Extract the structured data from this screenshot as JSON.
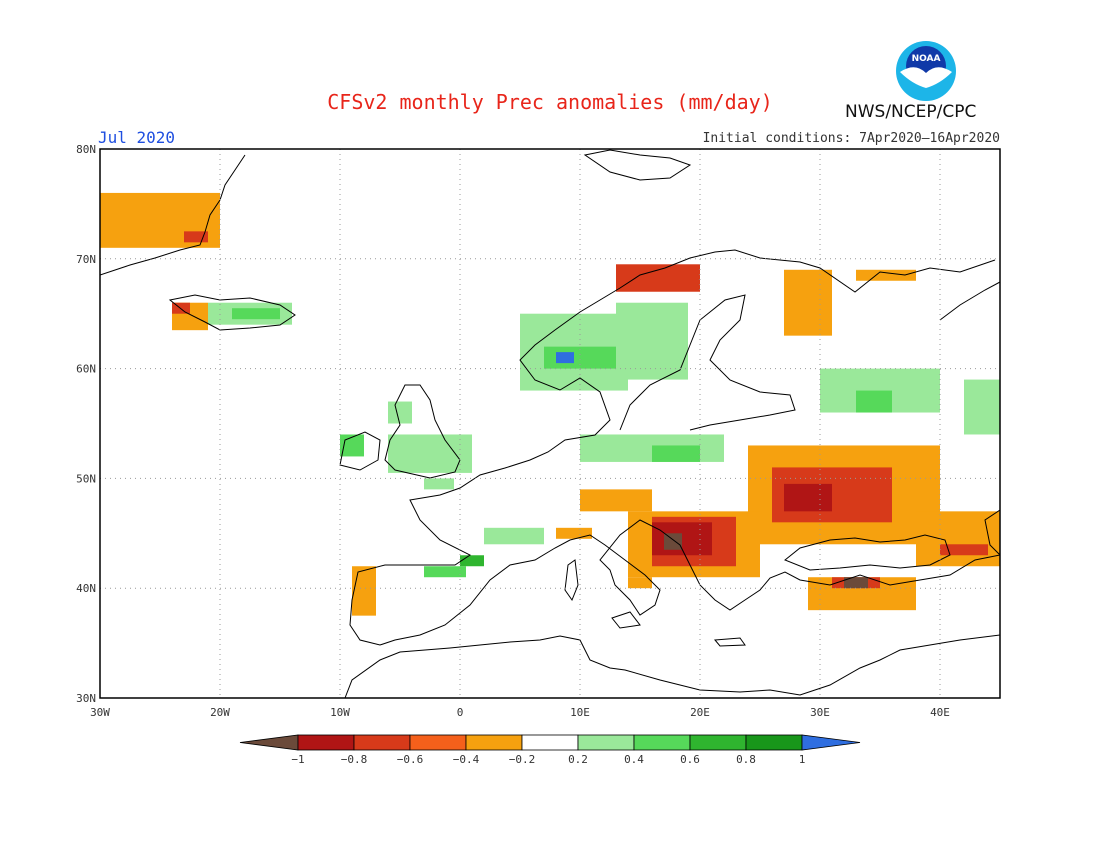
{
  "title": "CFSv2 monthly Prec anomalies (mm/day)",
  "month_label": "Jul 2020",
  "initial_conditions": "Initial conditions: 7Apr2020–16Apr2020",
  "agency": "NWS/NCEP/CPC",
  "logo": {
    "text": "NOAA",
    "colors": {
      "outer": "#1db5e8",
      "inner": "#1039a8",
      "bird": "#ffffff"
    }
  },
  "map": {
    "lon_range": [
      -30,
      45
    ],
    "lat_range": [
      30,
      80
    ],
    "lon_ticks": [
      {
        "value": -30,
        "label": "30W"
      },
      {
        "value": -20,
        "label": "20W"
      },
      {
        "value": -10,
        "label": "10W"
      },
      {
        "value": 0,
        "label": "0"
      },
      {
        "value": 10,
        "label": "10E"
      },
      {
        "value": 20,
        "label": "20E"
      },
      {
        "value": 30,
        "label": "30E"
      },
      {
        "value": 40,
        "label": "40E"
      }
    ],
    "lat_ticks": [
      {
        "value": 30,
        "label": "30N"
      },
      {
        "value": 40,
        "label": "40N"
      },
      {
        "value": 50,
        "label": "50N"
      },
      {
        "value": 60,
        "label": "60N"
      },
      {
        "value": 70,
        "label": "70N"
      },
      {
        "value": 80,
        "label": "80N"
      }
    ],
    "gridlines": "dotted"
  },
  "colorbar": {
    "labels": [
      "−1",
      "−0.8",
      "−0.6",
      "−0.4",
      "−0.2",
      "0.2",
      "0.4",
      "0.6",
      "0.8",
      "1"
    ],
    "colors": [
      "#6b4a3a",
      "#b01515",
      "#d73a1a",
      "#f5601b",
      "#f6a10f",
      "#ffffff",
      "#9ae89a",
      "#56d95a",
      "#2fb52f",
      "#18961a",
      "#2f6ee0"
    ]
  },
  "anomaly_regions": [
    {
      "name": "greenland-east",
      "color": "#f6a10f",
      "lon": [
        -30,
        -20
      ],
      "lat": [
        71,
        76
      ]
    },
    {
      "name": "greenland-east-core",
      "color": "#d73a1a",
      "lon": [
        -23,
        -21
      ],
      "lat": [
        71.5,
        72.5
      ]
    },
    {
      "name": "iceland-west",
      "color": "#f6a10f",
      "lon": [
        -24,
        -21
      ],
      "lat": [
        63.5,
        66
      ]
    },
    {
      "name": "iceland-west-core",
      "color": "#d73a1a",
      "lon": [
        -24,
        -22.5
      ],
      "lat": [
        65,
        66
      ]
    },
    {
      "name": "iceland-east",
      "color": "#9ae89a",
      "lon": [
        -21,
        -14
      ],
      "lat": [
        64,
        66
      ]
    },
    {
      "name": "iceland-east-core",
      "color": "#56d95a",
      "lon": [
        -19,
        -15
      ],
      "lat": [
        64.5,
        65.5
      ]
    },
    {
      "name": "ireland",
      "color": "#56d95a",
      "lon": [
        -10,
        -8
      ],
      "lat": [
        52,
        54
      ]
    },
    {
      "name": "uk",
      "color": "#9ae89a",
      "lon": [
        -6,
        1
      ],
      "lat": [
        50.5,
        54
      ]
    },
    {
      "name": "scotland",
      "color": "#9ae89a",
      "lon": [
        -6,
        -4
      ],
      "lat": [
        55,
        57
      ]
    },
    {
      "name": "france-west",
      "color": "#9ae89a",
      "lon": [
        -3,
        -0.5
      ],
      "lat": [
        49,
        50
      ]
    },
    {
      "name": "france-south",
      "color": "#9ae89a",
      "lon": [
        2,
        7
      ],
      "lat": [
        44,
        45.5
      ]
    },
    {
      "name": "spain-east",
      "color": "#56d95a",
      "lon": [
        -3,
        0.5
      ],
      "lat": [
        41,
        42
      ]
    },
    {
      "name": "spain-east-core",
      "color": "#2fb52f",
      "lon": [
        0,
        2
      ],
      "lat": [
        42,
        43
      ]
    },
    {
      "name": "portugal",
      "color": "#f6a10f",
      "lon": [
        -9,
        -7
      ],
      "lat": [
        37.5,
        42
      ]
    },
    {
      "name": "norway",
      "color": "#9ae89a",
      "lon": [
        5,
        14
      ],
      "lat": [
        58,
        65
      ]
    },
    {
      "name": "norway-core",
      "color": "#56d95a",
      "lon": [
        7,
        13
      ],
      "lat": [
        60,
        62
      ]
    },
    {
      "name": "norway-max",
      "color": "#2f6ee0",
      "lon": [
        8,
        9.5
      ],
      "lat": [
        60.5,
        61.5
      ]
    },
    {
      "name": "norway-coast",
      "color": "#d73a1a",
      "lon": [
        13,
        20
      ],
      "lat": [
        67,
        69.5
      ]
    },
    {
      "name": "sweden",
      "color": "#9ae89a",
      "lon": [
        13,
        19
      ],
      "lat": [
        59,
        66
      ]
    },
    {
      "name": "finland-north",
      "color": "#f6a10f",
      "lon": [
        27,
        31
      ],
      "lat": [
        63,
        69
      ]
    },
    {
      "name": "kola",
      "color": "#f6a10f",
      "lon": [
        33,
        38
      ],
      "lat": [
        68,
        69
      ]
    },
    {
      "name": "russia-nw",
      "color": "#9ae89a",
      "lon": [
        30,
        40
      ],
      "lat": [
        56,
        60
      ]
    },
    {
      "name": "russia-nw-core",
      "color": "#56d95a",
      "lon": [
        33,
        36
      ],
      "lat": [
        56,
        58
      ]
    },
    {
      "name": "russia-east",
      "color": "#9ae89a",
      "lon": [
        42,
        45
      ],
      "lat": [
        54,
        59
      ]
    },
    {
      "name": "germany-poland",
      "color": "#9ae89a",
      "lon": [
        10,
        22
      ],
      "lat": [
        51.5,
        54
      ]
    },
    {
      "name": "poland-core",
      "color": "#56d95a",
      "lon": [
        16,
        20
      ],
      "lat": [
        51.5,
        53
      ]
    },
    {
      "name": "central-europe",
      "color": "#f6a10f",
      "lon": [
        10,
        16
      ],
      "lat": [
        47,
        49
      ]
    },
    {
      "name": "ukraine",
      "color": "#f6a10f",
      "lon": [
        24,
        40
      ],
      "lat": [
        44,
        53
      ]
    },
    {
      "name": "ukraine-core",
      "color": "#d73a1a",
      "lon": [
        26,
        36
      ],
      "lat": [
        46,
        51
      ]
    },
    {
      "name": "ukraine-max",
      "color": "#b01515",
      "lon": [
        27,
        31
      ],
      "lat": [
        47,
        49.5
      ]
    },
    {
      "name": "caucasus",
      "color": "#f6a10f",
      "lon": [
        38,
        45
      ],
      "lat": [
        42,
        47
      ]
    },
    {
      "name": "caucasus-core",
      "color": "#d73a1a",
      "lon": [
        40,
        44
      ],
      "lat": [
        43,
        44
      ]
    },
    {
      "name": "balkans",
      "color": "#f6a10f",
      "lon": [
        14,
        25
      ],
      "lat": [
        41,
        47
      ]
    },
    {
      "name": "balkans-core",
      "color": "#d73a1a",
      "lon": [
        16,
        23
      ],
      "lat": [
        42,
        46.5
      ]
    },
    {
      "name": "balkans-max",
      "color": "#b01515",
      "lon": [
        16,
        21
      ],
      "lat": [
        43,
        46
      ]
    },
    {
      "name": "croatia-min",
      "color": "#6b4a3a",
      "lon": [
        17,
        18.5
      ],
      "lat": [
        43.5,
        45
      ]
    },
    {
      "name": "turkey",
      "color": "#f6a10f",
      "lon": [
        29,
        38
      ],
      "lat": [
        38,
        41
      ]
    },
    {
      "name": "turkey-core",
      "color": "#d73a1a",
      "lon": [
        31,
        35
      ],
      "lat": [
        40,
        41
      ]
    },
    {
      "name": "turkey-min",
      "color": "#6b4a3a",
      "lon": [
        32,
        34
      ],
      "lat": [
        40,
        41
      ]
    },
    {
      "name": "italy-north",
      "color": "#f6a10f",
      "lon": [
        8,
        11
      ],
      "lat": [
        44.5,
        45.5
      ]
    },
    {
      "name": "italy-south",
      "color": "#f6a10f",
      "lon": [
        14,
        16
      ],
      "lat": [
        40,
        41
      ]
    }
  ]
}
